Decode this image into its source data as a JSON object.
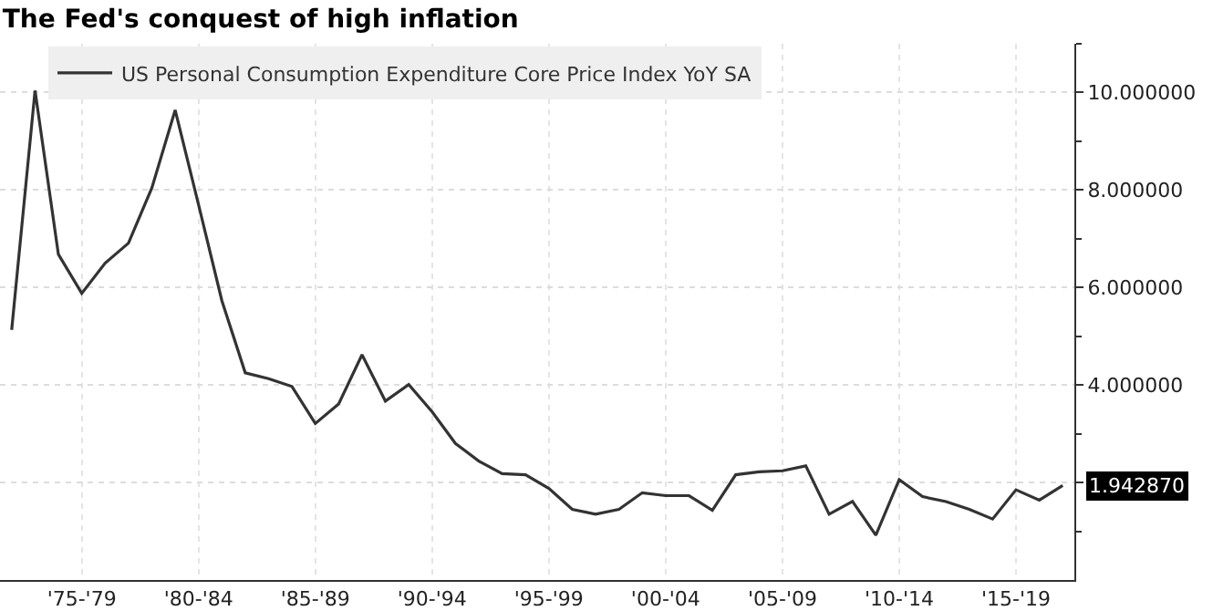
{
  "chart_data": {
    "type": "line",
    "title": "The Fed's conquest of high inflation",
    "categories": [
      null,
      null,
      null,
      "'75-'79",
      null,
      null,
      null,
      null,
      "'80-'84",
      null,
      null,
      null,
      null,
      "'85-'89",
      null,
      null,
      null,
      null,
      "'90-'94",
      null,
      null,
      null,
      null,
      "'95-'99",
      null,
      null,
      null,
      null,
      "'00-'04",
      null,
      null,
      null,
      null,
      "'05-'09",
      null,
      null,
      null,
      null,
      "'10-'14",
      null,
      null,
      null,
      null,
      "'15-'19",
      null,
      null
    ],
    "series": [
      {
        "name": "US Personal Consumption Expenditure Core Price Index YoY SA",
        "color": "#333333",
        "values": [
          5.13,
          10.04,
          6.68,
          5.88,
          6.5,
          6.91,
          8.04,
          9.64,
          7.7,
          5.73,
          4.25,
          4.13,
          3.97,
          3.21,
          3.61,
          4.62,
          3.67,
          4.01,
          3.45,
          2.8,
          2.44,
          2.18,
          2.16,
          1.88,
          1.45,
          1.35,
          1.45,
          1.79,
          1.73,
          1.73,
          1.43,
          2.16,
          2.22,
          2.24,
          2.34,
          1.35,
          1.61,
          0.92,
          2.06,
          1.71,
          1.61,
          1.45,
          1.25,
          1.85,
          1.64,
          1.94
        ]
      }
    ],
    "ylim": [
      0,
      11
    ],
    "yticks": [
      {
        "value": 2,
        "label": null
      },
      {
        "value": 4,
        "label": "4.000000"
      },
      {
        "value": 6,
        "label": "6.000000"
      },
      {
        "value": 8,
        "label": "8.000000"
      },
      {
        "value": 10,
        "label": "10.000000"
      }
    ],
    "annotations": [
      "1.942870"
    ],
    "grid": true,
    "legend": "top left",
    "marker": "none",
    "line_style": "solid"
  }
}
